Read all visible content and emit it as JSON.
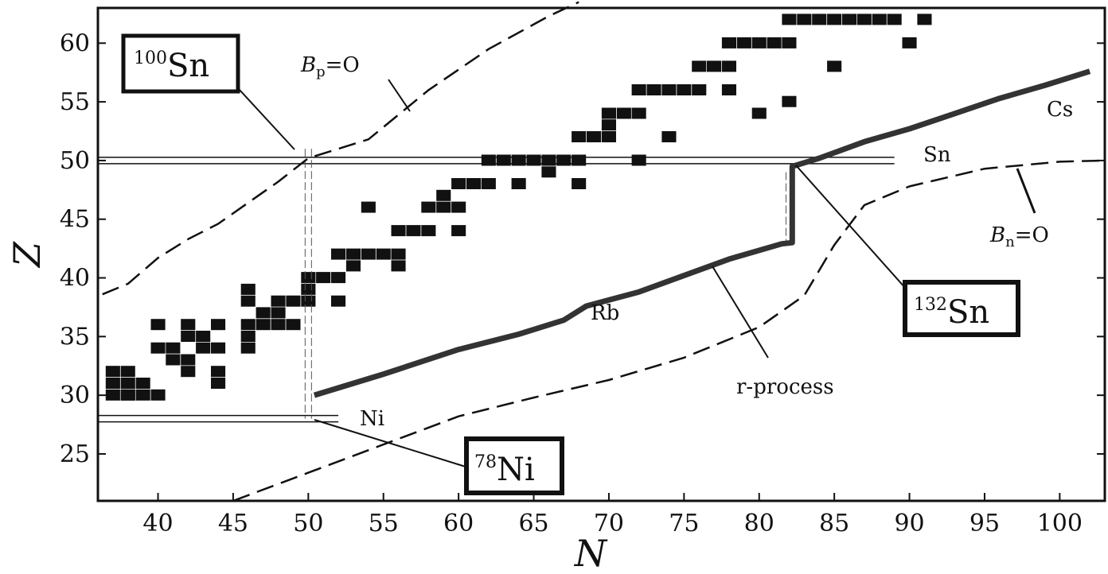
{
  "chart_data": {
    "type": "scatter",
    "title": "",
    "xlabel": "N",
    "ylabel": "Z",
    "xlim": [
      36,
      103
    ],
    "ylim": [
      21,
      63
    ],
    "x_ticks": [
      40,
      45,
      50,
      55,
      60,
      65,
      70,
      75,
      80,
      85,
      90,
      95,
      100
    ],
    "y_ticks": [
      25,
      30,
      35,
      40,
      45,
      50,
      55,
      60
    ],
    "grid": false,
    "stable_nuclei": [
      [
        37,
        30
      ],
      [
        38,
        30
      ],
      [
        37,
        31
      ],
      [
        38,
        31
      ],
      [
        37,
        32
      ],
      [
        38,
        32
      ],
      [
        39,
        30
      ],
      [
        39,
        31
      ],
      [
        40,
        30
      ],
      [
        40,
        34
      ],
      [
        41,
        33
      ],
      [
        41,
        34
      ],
      [
        42,
        32
      ],
      [
        42,
        33
      ],
      [
        42,
        35
      ],
      [
        42,
        36
      ],
      [
        43,
        34
      ],
      [
        43,
        35
      ],
      [
        44,
        32
      ],
      [
        44,
        34
      ],
      [
        44,
        36
      ],
      [
        46,
        34
      ],
      [
        46,
        35
      ],
      [
        46,
        36
      ],
      [
        46,
        38
      ],
      [
        47,
        36
      ],
      [
        47,
        37
      ],
      [
        48,
        36
      ],
      [
        48,
        37
      ],
      [
        48,
        38
      ],
      [
        49,
        38
      ],
      [
        49,
        36
      ],
      [
        50,
        38
      ],
      [
        50,
        39
      ],
      [
        50,
        40
      ],
      [
        51,
        40
      ],
      [
        52,
        40
      ],
      [
        52,
        42
      ],
      [
        53,
        41
      ],
      [
        53,
        42
      ],
      [
        54,
        42
      ],
      [
        55,
        42
      ],
      [
        56,
        42
      ],
      [
        56,
        44
      ],
      [
        57,
        44
      ],
      [
        58,
        44
      ],
      [
        58,
        46
      ],
      [
        59,
        46
      ],
      [
        59,
        47
      ],
      [
        60,
        46
      ],
      [
        60,
        48
      ],
      [
        61,
        48
      ],
      [
        62,
        48
      ],
      [
        62,
        50
      ],
      [
        63,
        50
      ],
      [
        64,
        50
      ],
      [
        65,
        50
      ],
      [
        66,
        50
      ],
      [
        67,
        50
      ],
      [
        68,
        50
      ],
      [
        68,
        52
      ],
      [
        69,
        52
      ],
      [
        70,
        52
      ],
      [
        70,
        54
      ],
      [
        71,
        54
      ],
      [
        72,
        54
      ],
      [
        72,
        56
      ],
      [
        73,
        56
      ],
      [
        74,
        56
      ],
      [
        75,
        56
      ],
      [
        76,
        56
      ],
      [
        76,
        58
      ],
      [
        77,
        58
      ],
      [
        78,
        58
      ],
      [
        78,
        60
      ],
      [
        79,
        60
      ],
      [
        80,
        60
      ],
      [
        81,
        60
      ],
      [
        82,
        60
      ],
      [
        82,
        62
      ],
      [
        83,
        62
      ],
      [
        84,
        62
      ],
      [
        85,
        62
      ],
      [
        86,
        62
      ],
      [
        87,
        62
      ],
      [
        88,
        62
      ],
      [
        89,
        62
      ],
      [
        38,
        30
      ],
      [
        40,
        36
      ],
      [
        44,
        31
      ],
      [
        46,
        39
      ],
      [
        52,
        38
      ],
      [
        54,
        46
      ],
      [
        56,
        41
      ],
      [
        60,
        44
      ],
      [
        64,
        48
      ],
      [
        66,
        49
      ],
      [
        68,
        48
      ],
      [
        70,
        53
      ],
      [
        72,
        50
      ],
      [
        74,
        52
      ],
      [
        78,
        56
      ],
      [
        80,
        54
      ],
      [
        82,
        55
      ],
      [
        85,
        58
      ],
      [
        90,
        60
      ],
      [
        91,
        62
      ]
    ],
    "r_process_path": [
      [
        50.4,
        30
      ],
      [
        55,
        31.8
      ],
      [
        60,
        33.9
      ],
      [
        64,
        35.2
      ],
      [
        67,
        36.4
      ],
      [
        68.5,
        37.6
      ],
      [
        72,
        38.8
      ],
      [
        75,
        40.2
      ],
      [
        78,
        41.6
      ],
      [
        81.5,
        42.9
      ],
      [
        82.2,
        43
      ],
      [
        82.2,
        49.5
      ],
      [
        84,
        50.2
      ],
      [
        87,
        51.6
      ],
      [
        90,
        52.7
      ],
      [
        93,
        54
      ],
      [
        96,
        55.3
      ],
      [
        99,
        56.4
      ],
      [
        102,
        57.6
      ]
    ],
    "proton_drip_line_Bp0": [
      [
        36.3,
        38.6
      ],
      [
        38,
        39.5
      ],
      [
        40,
        41.7
      ],
      [
        42,
        43.3
      ],
      [
        44,
        44.6
      ],
      [
        46,
        46.4
      ],
      [
        48,
        48.2
      ],
      [
        50,
        50.2
      ],
      [
        54,
        51.8
      ],
      [
        58,
        56
      ],
      [
        62,
        59.5
      ],
      [
        66,
        62.3
      ],
      [
        68,
        63.5
      ]
    ],
    "neutron_drip_line_Bn0": [
      [
        45,
        21
      ],
      [
        50,
        23.4
      ],
      [
        55,
        25.8
      ],
      [
        60,
        28.2
      ],
      [
        65,
        29.8
      ],
      [
        70,
        31.3
      ],
      [
        75,
        33.2
      ],
      [
        80,
        35.8
      ],
      [
        83,
        38.5
      ],
      [
        85,
        42.8
      ],
      [
        87,
        46.2
      ],
      [
        90,
        47.8
      ],
      [
        95,
        49.3
      ],
      [
        100,
        49.9
      ],
      [
        103,
        50
      ]
    ],
    "closed_shells": {
      "Z": [
        28,
        50
      ],
      "N": [
        50,
        82
      ]
    },
    "annotations": {
      "sn100": {
        "mass": "100",
        "symbol": "Sn"
      },
      "sn132": {
        "mass": "132",
        "symbol": "Sn"
      },
      "ni78": {
        "mass": "78",
        "symbol": "Ni"
      },
      "bp_prefix": "B",
      "bp_sub": "p",
      "bp_suffix": "=O",
      "bn_prefix": "B",
      "bn_sub": "n",
      "bn_suffix": "=O",
      "sn_label": "Sn",
      "ni_label": "Ni",
      "cs_label": "Cs",
      "rb_label": "Rb",
      "r_process_label": "r-process"
    }
  }
}
